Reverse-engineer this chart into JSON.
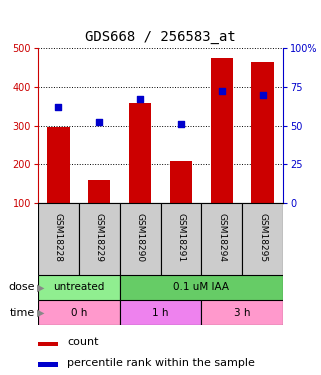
{
  "title": "GDS668 / 256583_at",
  "samples": [
    "GSM18228",
    "GSM18229",
    "GSM18290",
    "GSM18291",
    "GSM18294",
    "GSM18295"
  ],
  "bar_values": [
    295,
    160,
    357,
    208,
    475,
    465
  ],
  "bar_bottom": 100,
  "percentile_values": [
    62,
    52,
    67,
    51,
    72,
    70
  ],
  "ylim_left": [
    100,
    500
  ],
  "ylim_right": [
    0,
    100
  ],
  "yticks_left": [
    100,
    200,
    300,
    400,
    500
  ],
  "yticks_right": [
    0,
    25,
    50,
    75,
    100
  ],
  "bar_color": "#cc0000",
  "dot_color": "#0000cc",
  "dose_groups": [
    {
      "label": "untreated",
      "cols": [
        0,
        1
      ],
      "color": "#90ee90"
    },
    {
      "label": "0.1 uM IAA",
      "cols": [
        2,
        3,
        4,
        5
      ],
      "color": "#66cc66"
    }
  ],
  "time_groups": [
    {
      "label": "0 h",
      "cols": [
        0,
        1
      ],
      "color": "#ff99cc"
    },
    {
      "label": "1 h",
      "cols": [
        2,
        3
      ],
      "color": "#ee82ee"
    },
    {
      "label": "3 h",
      "cols": [
        4,
        5
      ],
      "color": "#ff99cc"
    }
  ],
  "dose_label": "dose",
  "time_label": "time",
  "legend_count": "count",
  "legend_percentile": "percentile rank within the sample",
  "left_axis_color": "#cc0000",
  "right_axis_color": "#0000cc",
  "title_fontsize": 10,
  "bar_width": 0.55,
  "sample_bg": "#cccccc"
}
